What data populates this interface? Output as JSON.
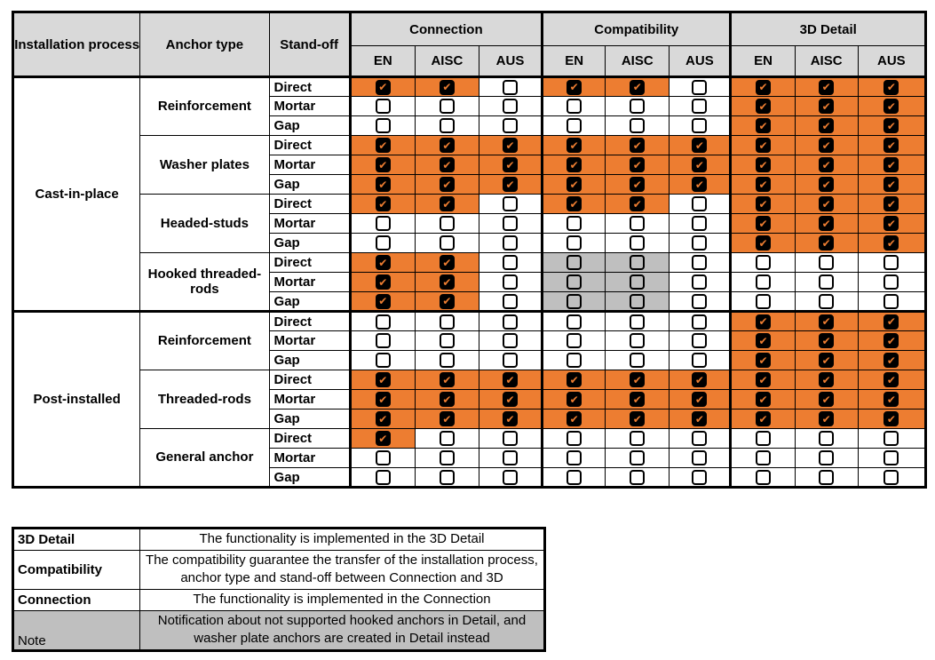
{
  "colors": {
    "accent_orange": "#ED7D31",
    "header_gray": "#D9D9D9",
    "note_gray": "#BFBFBF",
    "border_black": "#000000"
  },
  "icons": {
    "check": "✔"
  },
  "cell_codes": {
    "CO": "checked-orange",
    "UW": "unchecked-white",
    "UG": "unchecked-gray"
  },
  "matrix": {
    "header": {
      "col1": "Installation process",
      "col2": "Anchor type",
      "col3": "Stand-off",
      "groups": [
        {
          "label": "Connection"
        },
        {
          "label": "Compatibility"
        },
        {
          "label": "3D Detail"
        }
      ],
      "subcols": [
        "EN",
        "AISC",
        "AUS"
      ]
    },
    "sections": [
      {
        "process": "Cast-in-place",
        "anchors": [
          {
            "name": "Reinforcement",
            "rows": [
              {
                "standoff": "Direct",
                "cells": [
                  "CO",
                  "CO",
                  "UW",
                  "CO",
                  "CO",
                  "UW",
                  "CO",
                  "CO",
                  "CO"
                ]
              },
              {
                "standoff": "Mortar",
                "cells": [
                  "UW",
                  "UW",
                  "UW",
                  "UW",
                  "UW",
                  "UW",
                  "CO",
                  "CO",
                  "CO"
                ]
              },
              {
                "standoff": "Gap",
                "cells": [
                  "UW",
                  "UW",
                  "UW",
                  "UW",
                  "UW",
                  "UW",
                  "CO",
                  "CO",
                  "CO"
                ]
              }
            ]
          },
          {
            "name": "Washer plates",
            "rows": [
              {
                "standoff": "Direct",
                "cells": [
                  "CO",
                  "CO",
                  "CO",
                  "CO",
                  "CO",
                  "CO",
                  "CO",
                  "CO",
                  "CO"
                ]
              },
              {
                "standoff": "Mortar",
                "cells": [
                  "CO",
                  "CO",
                  "CO",
                  "CO",
                  "CO",
                  "CO",
                  "CO",
                  "CO",
                  "CO"
                ]
              },
              {
                "standoff": "Gap",
                "cells": [
                  "CO",
                  "CO",
                  "CO",
                  "CO",
                  "CO",
                  "CO",
                  "CO",
                  "CO",
                  "CO"
                ]
              }
            ]
          },
          {
            "name": "Headed-studs",
            "rows": [
              {
                "standoff": "Direct",
                "cells": [
                  "CO",
                  "CO",
                  "UW",
                  "CO",
                  "CO",
                  "UW",
                  "CO",
                  "CO",
                  "CO"
                ]
              },
              {
                "standoff": "Mortar",
                "cells": [
                  "UW",
                  "UW",
                  "UW",
                  "UW",
                  "UW",
                  "UW",
                  "CO",
                  "CO",
                  "CO"
                ]
              },
              {
                "standoff": "Gap",
                "cells": [
                  "UW",
                  "UW",
                  "UW",
                  "UW",
                  "UW",
                  "UW",
                  "CO",
                  "CO",
                  "CO"
                ]
              }
            ]
          },
          {
            "name": "Hooked threaded-rods",
            "rows": [
              {
                "standoff": "Direct",
                "cells": [
                  "CO",
                  "CO",
                  "UW",
                  "UG",
                  "UG",
                  "UW",
                  "UW",
                  "UW",
                  "UW"
                ]
              },
              {
                "standoff": "Mortar",
                "cells": [
                  "CO",
                  "CO",
                  "UW",
                  "UG",
                  "UG",
                  "UW",
                  "UW",
                  "UW",
                  "UW"
                ]
              },
              {
                "standoff": "Gap",
                "cells": [
                  "CO",
                  "CO",
                  "UW",
                  "UG",
                  "UG",
                  "UW",
                  "UW",
                  "UW",
                  "UW"
                ]
              }
            ]
          }
        ]
      },
      {
        "process": "Post-installed",
        "anchors": [
          {
            "name": "Reinforcement",
            "rows": [
              {
                "standoff": "Direct",
                "cells": [
                  "UW",
                  "UW",
                  "UW",
                  "UW",
                  "UW",
                  "UW",
                  "CO",
                  "CO",
                  "CO"
                ]
              },
              {
                "standoff": "Mortar",
                "cells": [
                  "UW",
                  "UW",
                  "UW",
                  "UW",
                  "UW",
                  "UW",
                  "CO",
                  "CO",
                  "CO"
                ]
              },
              {
                "standoff": "Gap",
                "cells": [
                  "UW",
                  "UW",
                  "UW",
                  "UW",
                  "UW",
                  "UW",
                  "CO",
                  "CO",
                  "CO"
                ]
              }
            ]
          },
          {
            "name": "Threaded-rods",
            "rows": [
              {
                "standoff": "Direct",
                "cells": [
                  "CO",
                  "CO",
                  "CO",
                  "CO",
                  "CO",
                  "CO",
                  "CO",
                  "CO",
                  "CO"
                ]
              },
              {
                "standoff": "Mortar",
                "cells": [
                  "CO",
                  "CO",
                  "CO",
                  "CO",
                  "CO",
                  "CO",
                  "CO",
                  "CO",
                  "CO"
                ]
              },
              {
                "standoff": "Gap",
                "cells": [
                  "CO",
                  "CO",
                  "CO",
                  "CO",
                  "CO",
                  "CO",
                  "CO",
                  "CO",
                  "CO"
                ]
              }
            ]
          },
          {
            "name": "General anchor",
            "rows": [
              {
                "standoff": "Direct",
                "cells": [
                  "CO",
                  "UW",
                  "UW",
                  "UW",
                  "UW",
                  "UW",
                  "UW",
                  "UW",
                  "UW"
                ]
              },
              {
                "standoff": "Mortar",
                "cells": [
                  "UW",
                  "UW",
                  "UW",
                  "UW",
                  "UW",
                  "UW",
                  "UW",
                  "UW",
                  "UW"
                ]
              },
              {
                "standoff": "Gap",
                "cells": [
                  "UW",
                  "UW",
                  "UW",
                  "UW",
                  "UW",
                  "UW",
                  "UW",
                  "UW",
                  "UW"
                ]
              }
            ]
          }
        ]
      }
    ]
  },
  "legend": {
    "rows": [
      {
        "term": "3D Detail",
        "bold": true,
        "gray": false,
        "desc": "The functionality is implemented in the 3D Detail"
      },
      {
        "term": "Compatibility",
        "bold": true,
        "gray": false,
        "desc": "The compatibility guarantee the transfer of the installation process, anchor type and stand-off between Connection and 3D"
      },
      {
        "term": "Connection",
        "bold": true,
        "gray": false,
        "desc": "The functionality is implemented in the Connection"
      },
      {
        "term": "Note",
        "bold": false,
        "gray": true,
        "desc": "Notification about not supported hooked anchors in Detail, and washer plate anchors are created in Detail instead"
      }
    ]
  }
}
